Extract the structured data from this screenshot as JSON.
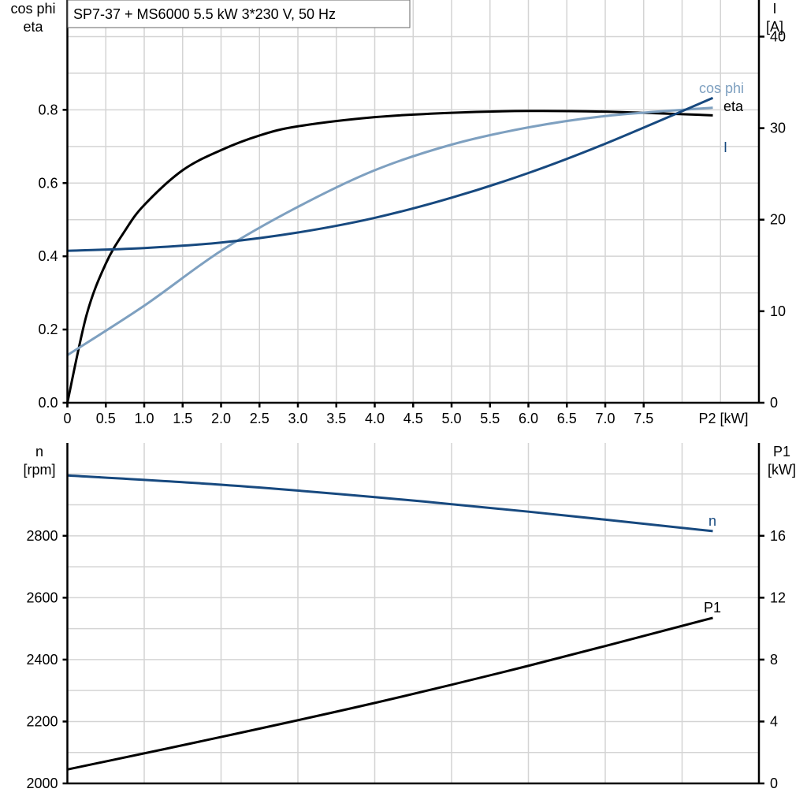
{
  "title": "SP7-37 + MS6000   5.5 kW   3*230 V, 50 Hz",
  "chart_data": [
    {
      "type": "line",
      "x_label": "P2 [kW]",
      "x_ticks": [
        "0",
        "0.5",
        "1.0",
        "1.5",
        "2.0",
        "2.5",
        "3.0",
        "3.5",
        "4.0",
        "4.5",
        "5.0",
        "5.5",
        "6.0",
        "6.5",
        "7.0",
        "7.5"
      ],
      "xlim": [
        0,
        9
      ],
      "y_left_label": [
        "cos phi",
        "eta"
      ],
      "y_left_ticks": [
        "0.0",
        "0.2",
        "0.4",
        "0.6",
        "0.8"
      ],
      "ylim_left": [
        0,
        1.1
      ],
      "y_right_label": [
        "I",
        "[A]"
      ],
      "y_right_ticks": [
        "0",
        "10",
        "20",
        "30",
        "40"
      ],
      "ylim_right": [
        0,
        44
      ],
      "grid": true,
      "series": [
        {
          "name": "eta",
          "axis": "left",
          "color": "#000000",
          "points": [
            [
              0,
              0
            ],
            [
              0.25,
              0.24
            ],
            [
              0.5,
              0.38
            ],
            [
              0.75,
              0.47
            ],
            [
              1,
              0.54
            ],
            [
              1.5,
              0.635
            ],
            [
              2,
              0.69
            ],
            [
              2.5,
              0.73
            ],
            [
              3,
              0.755
            ],
            [
              4,
              0.78
            ],
            [
              5,
              0.792
            ],
            [
              6,
              0.797
            ],
            [
              7,
              0.795
            ],
            [
              8.4,
              0.785
            ]
          ]
        },
        {
          "name": "cos phi",
          "axis": "left",
          "color": "#7ea0c0",
          "points": [
            [
              0,
              0.13
            ],
            [
              1,
              0.265
            ],
            [
              2,
              0.415
            ],
            [
              3,
              0.535
            ],
            [
              4,
              0.635
            ],
            [
              5,
              0.705
            ],
            [
              6,
              0.752
            ],
            [
              7,
              0.783
            ],
            [
              8.4,
              0.806
            ]
          ]
        },
        {
          "name": "I",
          "axis": "right",
          "color": "#17497f",
          "points": [
            [
              0,
              16.6
            ],
            [
              1,
              16.9
            ],
            [
              2,
              17.5
            ],
            [
              3,
              18.6
            ],
            [
              4,
              20.2
            ],
            [
              5,
              22.4
            ],
            [
              6,
              25.1
            ],
            [
              7,
              28.3
            ],
            [
              8.4,
              33.3
            ]
          ]
        }
      ]
    },
    {
      "type": "line",
      "xlim": [
        0,
        9
      ],
      "y_left_label": [
        "n",
        "[rpm]"
      ],
      "y_left_ticks": [
        "2000",
        "2200",
        "2400",
        "2600",
        "2800"
      ],
      "ylim_left": [
        2000,
        3100
      ],
      "y_right_label": [
        "P1",
        "[kW]"
      ],
      "y_right_ticks": [
        "0",
        "4",
        "8",
        "12",
        "16"
      ],
      "ylim_right": [
        0,
        22
      ],
      "grid": true,
      "series": [
        {
          "name": "n",
          "axis": "left",
          "color": "#17497f",
          "points": [
            [
              0,
              2995
            ],
            [
              2,
              2965
            ],
            [
              4,
              2925
            ],
            [
              6,
              2878
            ],
            [
              8.4,
              2815
            ]
          ]
        },
        {
          "name": "P1",
          "axis": "right",
          "color": "#000000",
          "points": [
            [
              0,
              0.9
            ],
            [
              2,
              3.0
            ],
            [
              4,
              5.2
            ],
            [
              6,
              7.6
            ],
            [
              8.4,
              10.7
            ]
          ]
        }
      ]
    }
  ]
}
